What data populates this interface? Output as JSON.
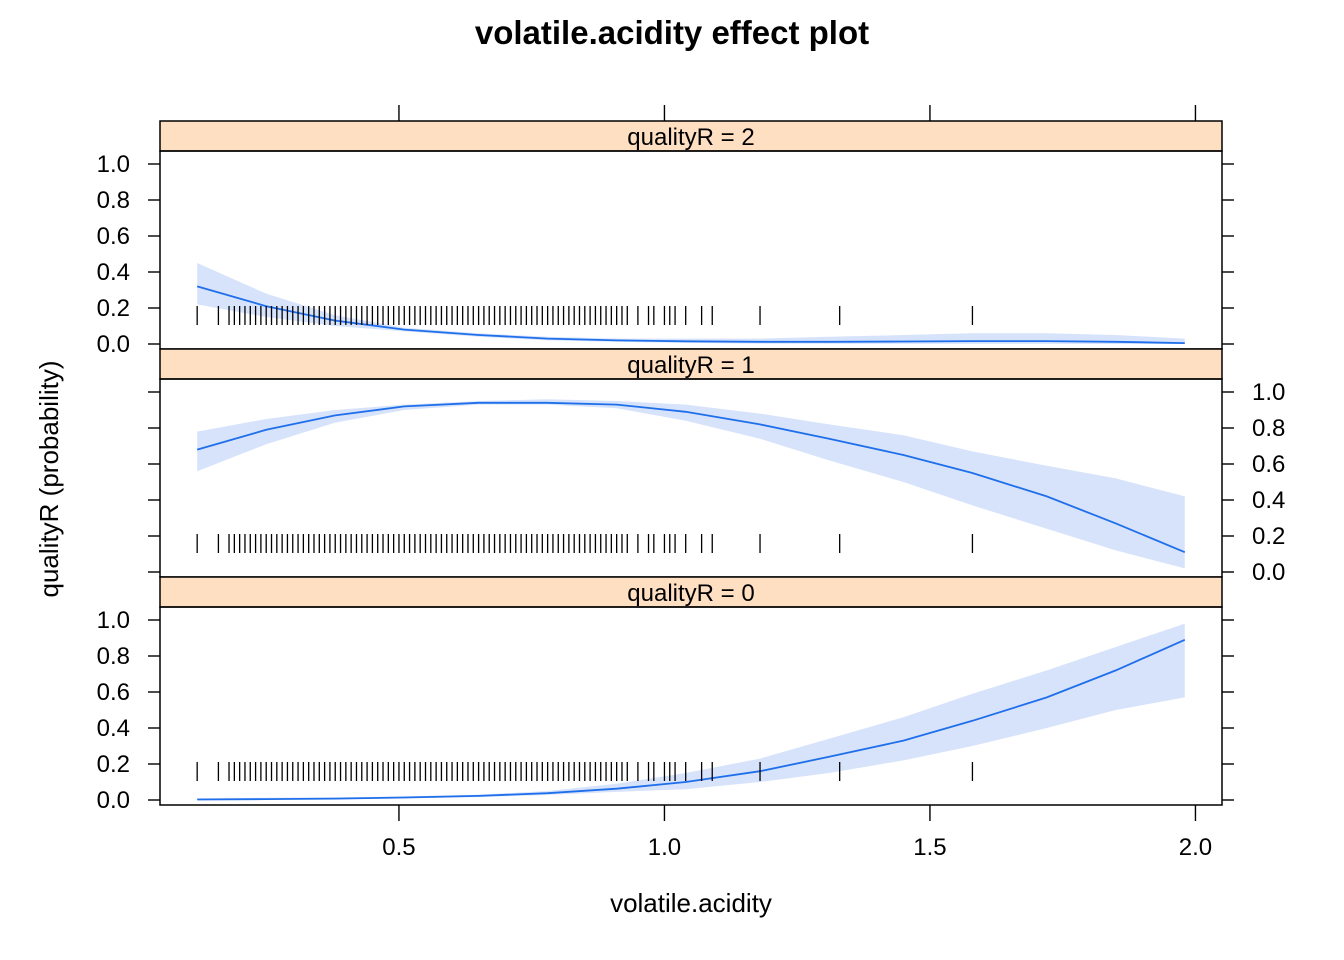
{
  "chart_data": {
    "type": "line",
    "title": "volatile.acidity effect plot",
    "xlabel": "volatile.acidity",
    "ylabel": "qualityR (probability)",
    "xlim": [
      0.05,
      2.05
    ],
    "ylim": [
      0,
      1.1
    ],
    "x_ticks": [
      0.5,
      1.0,
      1.5,
      2.0
    ],
    "x_tick_labels": [
      "0.5",
      "1.0",
      "1.5",
      "2.0"
    ],
    "y_ticks": [
      0,
      0.2,
      0.4,
      0.6,
      0.8,
      1.0
    ],
    "y_tick_labels": [
      "0.0",
      "0.2",
      "0.4",
      "0.6",
      "0.8",
      "1.0"
    ],
    "colors": {
      "line": "#1f6feb",
      "band": "#d7e3fb",
      "strip": "#ffdfc2",
      "rug": "#000000"
    },
    "rug_x": [
      0.12,
      0.16,
      0.18,
      0.19,
      0.2,
      0.21,
      0.22,
      0.23,
      0.24,
      0.25,
      0.26,
      0.27,
      0.28,
      0.29,
      0.3,
      0.31,
      0.32,
      0.33,
      0.34,
      0.35,
      0.36,
      0.37,
      0.38,
      0.39,
      0.4,
      0.41,
      0.42,
      0.43,
      0.44,
      0.45,
      0.46,
      0.47,
      0.48,
      0.49,
      0.5,
      0.51,
      0.52,
      0.53,
      0.54,
      0.55,
      0.56,
      0.57,
      0.58,
      0.59,
      0.6,
      0.61,
      0.62,
      0.63,
      0.64,
      0.65,
      0.66,
      0.67,
      0.68,
      0.69,
      0.7,
      0.71,
      0.72,
      0.73,
      0.74,
      0.75,
      0.76,
      0.77,
      0.78,
      0.79,
      0.8,
      0.81,
      0.82,
      0.83,
      0.84,
      0.85,
      0.86,
      0.87,
      0.88,
      0.89,
      0.9,
      0.91,
      0.92,
      0.93,
      0.95,
      0.97,
      0.98,
      1.0,
      1.01,
      1.02,
      1.04,
      1.07,
      1.09,
      1.18,
      1.33,
      1.58
    ],
    "panels": [
      {
        "strip": "qualityR = 2",
        "x": [
          0.12,
          0.25,
          0.38,
          0.51,
          0.65,
          0.78,
          0.91,
          1.04,
          1.18,
          1.31,
          1.45,
          1.58,
          1.72,
          1.85,
          1.98
        ],
        "fit": [
          0.32,
          0.21,
          0.13,
          0.08,
          0.05,
          0.03,
          0.02,
          0.015,
          0.012,
          0.012,
          0.014,
          0.016,
          0.016,
          0.012,
          0.005
        ],
        "lower": [
          0.22,
          0.15,
          0.1,
          0.07,
          0.04,
          0.02,
          0.012,
          0.006,
          0.002,
          0.001,
          0.001,
          0.001,
          0.001,
          0.0,
          0.0
        ],
        "upper": [
          0.45,
          0.28,
          0.16,
          0.09,
          0.06,
          0.04,
          0.03,
          0.03,
          0.03,
          0.04,
          0.05,
          0.06,
          0.06,
          0.05,
          0.03
        ]
      },
      {
        "strip": "qualityR = 1",
        "x": [
          0.12,
          0.25,
          0.38,
          0.51,
          0.65,
          0.78,
          0.91,
          1.04,
          1.18,
          1.31,
          1.45,
          1.58,
          1.72,
          1.85,
          1.98
        ],
        "fit": [
          0.68,
          0.79,
          0.87,
          0.92,
          0.94,
          0.94,
          0.93,
          0.89,
          0.82,
          0.74,
          0.65,
          0.55,
          0.42,
          0.27,
          0.11
        ],
        "lower": [
          0.56,
          0.71,
          0.83,
          0.9,
          0.93,
          0.93,
          0.91,
          0.84,
          0.74,
          0.62,
          0.5,
          0.37,
          0.24,
          0.12,
          0.02
        ],
        "upper": [
          0.78,
          0.85,
          0.9,
          0.93,
          0.95,
          0.96,
          0.95,
          0.93,
          0.88,
          0.82,
          0.76,
          0.67,
          0.59,
          0.52,
          0.42
        ]
      },
      {
        "strip": "qualityR = 0",
        "x": [
          0.12,
          0.25,
          0.38,
          0.51,
          0.65,
          0.78,
          0.91,
          1.04,
          1.18,
          1.31,
          1.45,
          1.58,
          1.72,
          1.85,
          1.98
        ],
        "fit": [
          0.003,
          0.005,
          0.008,
          0.014,
          0.023,
          0.038,
          0.063,
          0.1,
          0.16,
          0.24,
          0.33,
          0.44,
          0.57,
          0.72,
          0.89
        ],
        "lower": [
          0.001,
          0.002,
          0.004,
          0.009,
          0.016,
          0.028,
          0.045,
          0.06,
          0.1,
          0.15,
          0.22,
          0.3,
          0.4,
          0.5,
          0.57
        ],
        "upper": [
          0.01,
          0.012,
          0.015,
          0.02,
          0.03,
          0.05,
          0.09,
          0.15,
          0.23,
          0.34,
          0.46,
          0.59,
          0.72,
          0.85,
          0.98
        ]
      }
    ]
  }
}
